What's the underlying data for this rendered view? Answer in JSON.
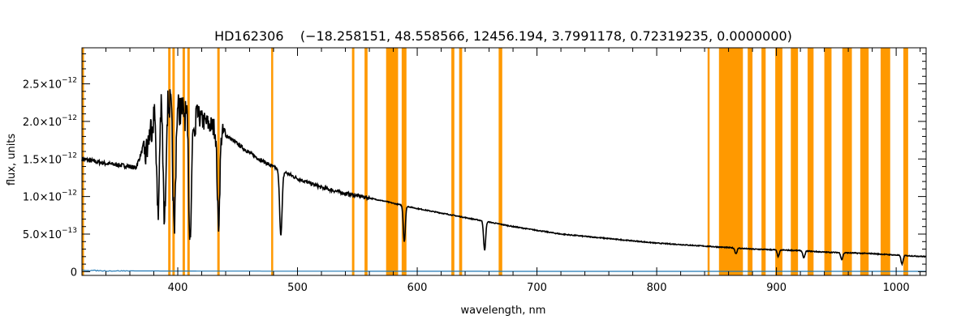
{
  "chart_data": {
    "type": "line",
    "title": "HD162306    (−18.258151, 48.558566, 12456.194, 3.7991178, 0.72319235, 0.0000000)",
    "xlabel": "wavelength, nm",
    "ylabel": "flux, units",
    "xlim": [
      320,
      1025
    ],
    "ylim": [
      -5e-14,
      2.98e-12
    ],
    "grid": false,
    "x_ticks": [
      400,
      500,
      600,
      700,
      800,
      900,
      1000
    ],
    "y_ticks": [
      {
        "value": 0,
        "mantissa": "0",
        "exponent": ""
      },
      {
        "value": 5e-13,
        "mantissa": "5.0×10",
        "exponent": "−13"
      },
      {
        "value": 1e-12,
        "mantissa": "1.0×10",
        "exponent": "−12"
      },
      {
        "value": 1.5e-12,
        "mantissa": "1.5×10",
        "exponent": "−12"
      },
      {
        "value": 2e-12,
        "mantissa": "2.0×10",
        "exponent": "−12"
      },
      {
        "value": 2.5e-12,
        "mantissa": "2.5×10",
        "exponent": "−12"
      }
    ],
    "colors": {
      "spectrum": "#000000",
      "error": "#1f77b4",
      "masked": "#ff9900",
      "axes": "#000000"
    },
    "masked_regions": [
      [
        320,
        321.5
      ],
      [
        392,
        394
      ],
      [
        395.5,
        397.5
      ],
      [
        404,
        406
      ],
      [
        408,
        410
      ],
      [
        433,
        435
      ],
      [
        478,
        479.5
      ],
      [
        545.5,
        547.5
      ],
      [
        556,
        558.5
      ],
      [
        574,
        584
      ],
      [
        587,
        591
      ],
      [
        628.5,
        631
      ],
      [
        635,
        637.5
      ],
      [
        668,
        671
      ],
      [
        842.5,
        844
      ],
      [
        852,
        872
      ],
      [
        876,
        880
      ],
      [
        887.5,
        891
      ],
      [
        899,
        905
      ],
      [
        912,
        918
      ],
      [
        926,
        931
      ],
      [
        940,
        946
      ],
      [
        955,
        963
      ],
      [
        970,
        977
      ],
      [
        987,
        995
      ],
      [
        1006,
        1010
      ]
    ],
    "series": [
      {
        "x": [
          320,
          330,
          340,
          350,
          360,
          365,
          370,
          375,
          380,
          385,
          390,
          395,
          400,
          405,
          410,
          420,
          430,
          440,
          450,
          460,
          470,
          480,
          490,
          500,
          520,
          540,
          560,
          575,
          580,
          600,
          620,
          640,
          660,
          680,
          700,
          720,
          740,
          760,
          780,
          800,
          820,
          840,
          860,
          880,
          900,
          920,
          940,
          960,
          980,
          1000,
          1025
        ],
        "y": [
          1.5e-12,
          1.47e-12,
          1.44e-12,
          1.42e-12,
          1.4e-12,
          1.38e-12,
          1.6e-12,
          1.95e-12,
          2.3e-12,
          2.5e-12,
          2.48e-12,
          2.44e-12,
          2.4e-12,
          2.35e-12,
          2.2e-12,
          2.02e-12,
          1.92e-12,
          1.82e-12,
          1.7e-12,
          1.58e-12,
          1.48e-12,
          1.39e-12,
          1.32e-12,
          1.24e-12,
          1.12e-12,
          1.04e-12,
          9.8e-13,
          9.3e-13,
          9.1e-13,
          8.4e-13,
          7.8e-13,
          7.2e-13,
          6.6e-13,
          6e-13,
          5.5e-13,
          5e-13,
          4.7e-13,
          4.4e-13,
          4.1e-13,
          3.8e-13,
          3.6e-13,
          3.4e-13,
          3.2e-13,
          3e-13,
          2.9e-13,
          2.8e-13,
          2.6e-13,
          2.5e-13,
          2.4e-13,
          2.2e-13,
          2e-13
        ]
      },
      {
        "x": [
          320,
          340,
          360,
          400,
          500,
          600,
          700,
          800,
          900,
          1000,
          1025
        ],
        "y": [
          2e-14,
          1e-14,
          1e-14,
          8e-15,
          6e-15,
          5e-15,
          4e-15,
          4e-15,
          4e-15,
          4e-15,
          4e-15
        ]
      }
    ],
    "absorption_lines": [
      {
        "x": 383.5,
        "y": 9.5e-13
      },
      {
        "x": 388.9,
        "y": 8.6e-13
      },
      {
        "x": 397.0,
        "y": 7.2e-13
      },
      {
        "x": 410.2,
        "y": 7.2e-13
      },
      {
        "x": 434.0,
        "y": 6.2e-13
      },
      {
        "x": 486.1,
        "y": 5e-13
      },
      {
        "x": 589.2,
        "y": 4e-13
      },
      {
        "x": 656.3,
        "y": 2.8e-13
      },
      {
        "x": 866.2,
        "y": 2.4e-13
      },
      {
        "x": 901.5,
        "y": 2e-13
      },
      {
        "x": 922.9,
        "y": 1.8e-13
      },
      {
        "x": 954.6,
        "y": 1.6e-13
      },
      {
        "x": 1004.9,
        "y": 1e-13
      }
    ]
  }
}
